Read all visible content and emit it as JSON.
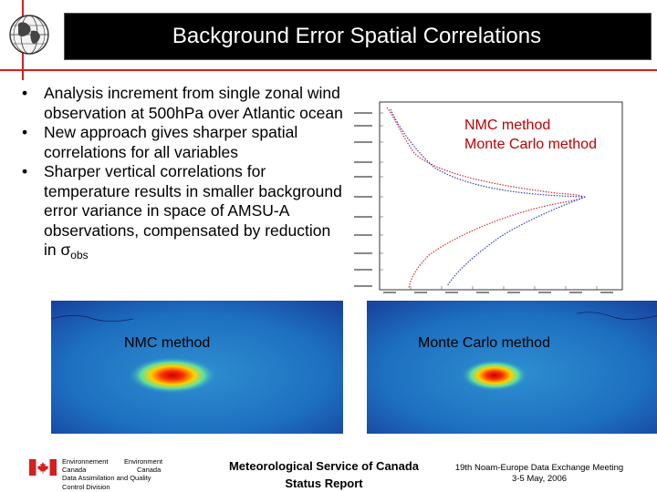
{
  "header": {
    "title": "Background Error Spatial Correlations"
  },
  "bullets": [
    "Analysis increment from single zonal wind observation at 500hPa over Atlantic ocean",
    "New approach gives sharper spatial correlations for all variables",
    "Sharper vertical correlations for temperature results in smaller background error variance in space of AMSU-A observations, compensated by reduction in σ"
  ],
  "bullet3_subscript": "obs",
  "profile_legend": {
    "nmc": "NMC method",
    "monte_carlo": "Monte Carlo method"
  },
  "maps": {
    "left_label": "NMC method",
    "right_label": "Monte Carlo method"
  },
  "footer": {
    "ec_en_1": "Environnement",
    "ec_en_2": "Canada",
    "ec_fr_1": "Environment",
    "ec_fr_2": "Canada",
    "division_1": "Data Assimilation and Quality",
    "division_2": "Control Division",
    "msc_line1": "Meteorological Service of Canada",
    "msc_line2": "Status Report",
    "meeting_line1": "19th Noam-Europe Data Exchange Meeting",
    "meeting_line2": "3-5 May, 2006"
  },
  "colors": {
    "accent_red": "#d42020",
    "title_bg": "#000000",
    "legend_text": "#c00000",
    "nmc_profile": "#d03030",
    "monte_carlo_profile": "#3040c0"
  },
  "icons": [
    "globe-icon",
    "canada-flag-icon"
  ]
}
